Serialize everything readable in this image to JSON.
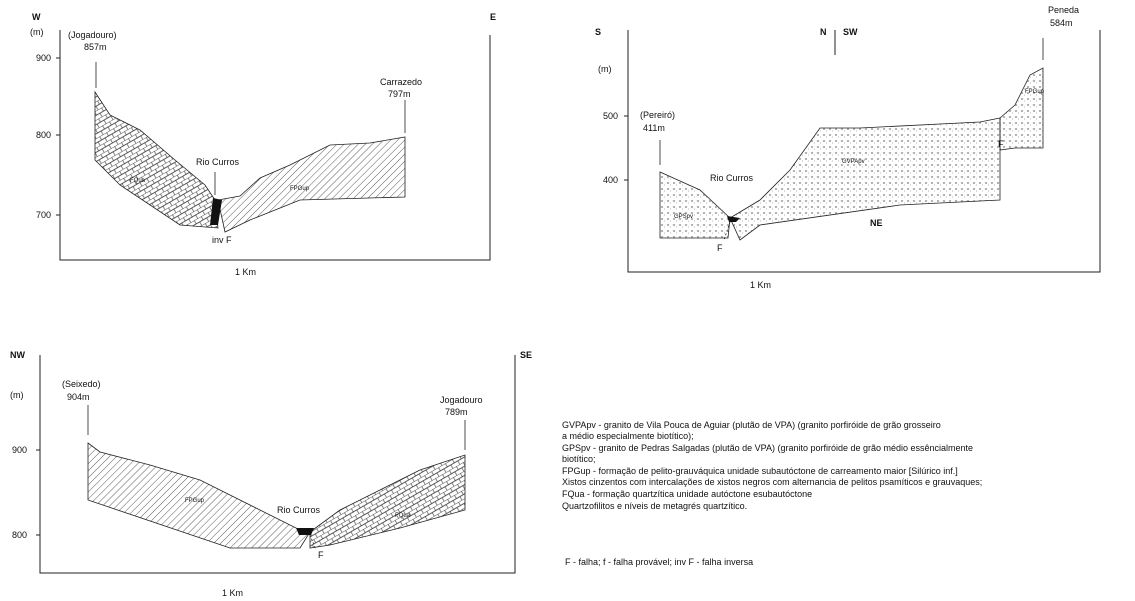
{
  "sections": [
    {
      "labels": [
        "W",
        "E",
        "(m)",
        "(Jogadouro)",
        "857m",
        "Carrazedo",
        "797m",
        "Rio Curros",
        "inv F",
        "FQua",
        "FPGup",
        "1 Km"
      ],
      "elevations": [
        900,
        800,
        700
      ]
    },
    {
      "labels": [
        "S",
        "N",
        "SW",
        "Peneda",
        "584m",
        "(m)",
        "(Pereiró)",
        "411m",
        "Rio Curros",
        "GPSpv",
        "GVPApv",
        "FPGup",
        "F",
        "F",
        "NE",
        "1 Km"
      ],
      "elevations": [
        500,
        400
      ]
    },
    {
      "labels": [
        "NW",
        "SE",
        "(m)",
        "(Seixedo)",
        "904m",
        "Jogadouro",
        "789m",
        "Rio Curros",
        "FPGup",
        "FQua",
        "F",
        "1 Km"
      ],
      "elevations": [
        900,
        800
      ]
    }
  ],
  "legend": [
    "GVPApv - granito de Vila Pouca de Aguiar (plutão de VPA) (granito porfiróide de grão grosseiro",
    "a médio especialmente biotítico);",
    "GPSpv - granito de Pedras Salgadas (plutão de VPA) (granito porfiróide de grão médio essêncialmente",
    "biotítico;",
    "FPGup - formação de pelito-grauváquica unidade subautóctone de carreamento maior [Silúrico inf.]",
    "Xistos cinzentos com intercalações de xistos negros com alternancia de pelitos psamíticos e grauvaques;",
    "FQua - formação quartzítica unidade autóctone esubautóctone",
    "Quartzofilitos e níveis de metagrés quartzítico.",
    "F - falha; f - falha provável; inv F - falha inversa"
  ]
}
